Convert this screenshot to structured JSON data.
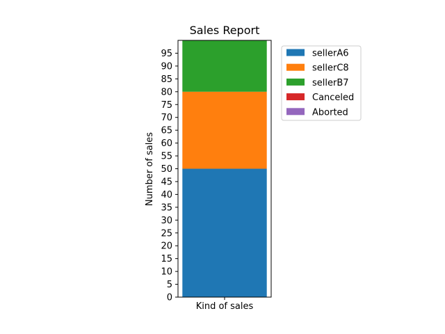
{
  "chart_data": {
    "type": "bar",
    "stacked": true,
    "title": "Sales Report",
    "xlabel": "",
    "ylabel": "Number of sales",
    "categories": [
      "Kind of sales"
    ],
    "ylim": [
      0,
      100
    ],
    "yticks": [
      0,
      5,
      10,
      15,
      20,
      25,
      30,
      35,
      40,
      45,
      50,
      55,
      60,
      65,
      70,
      75,
      80,
      85,
      90,
      95
    ],
    "grid": false,
    "legend_position": "upper-right-outside",
    "series": [
      {
        "name": "sellerA6",
        "values": [
          50
        ],
        "color": "#1f77b4"
      },
      {
        "name": "sellerC8",
        "values": [
          30
        ],
        "color": "#ff7f0e"
      },
      {
        "name": "sellerB7",
        "values": [
          20
        ],
        "color": "#2ca02c"
      },
      {
        "name": "Canceled",
        "values": [
          0
        ],
        "color": "#d62728"
      },
      {
        "name": "Aborted",
        "values": [
          0
        ],
        "color": "#9467bd"
      }
    ]
  }
}
